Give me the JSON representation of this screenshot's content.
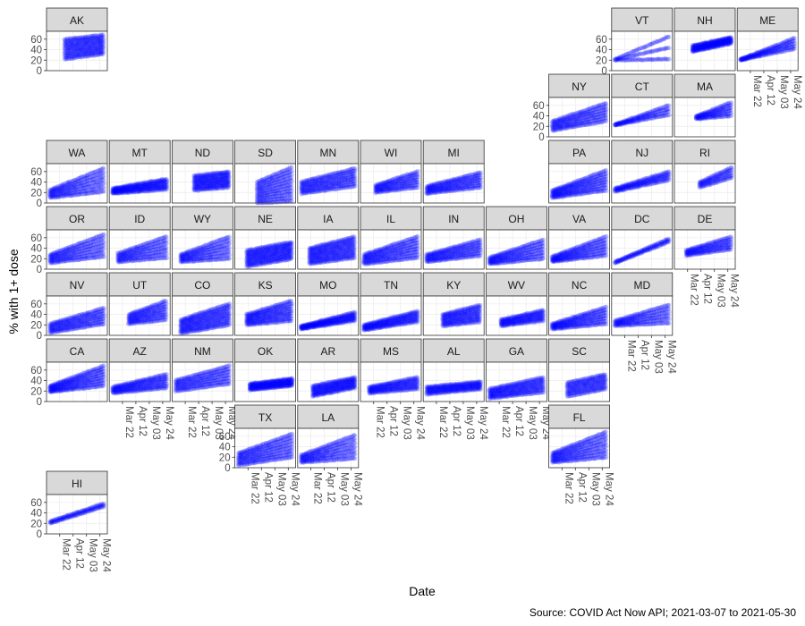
{
  "chart_data": {
    "type": "scatter",
    "layout": "geofacet-us-states",
    "xlabel": "Date",
    "ylabel": "% with 1+ dose",
    "caption": "Source: COVID Act Now API; 2021-03-07  to  2021-05-30",
    "x_range": [
      "2021-03-07",
      "2021-05-30"
    ],
    "x_ticks": [
      "2021-03-22",
      "2021-04-12",
      "2021-05-03",
      "2021-05-24"
    ],
    "x_tick_labels": [
      "Mar 22",
      "Apr 12",
      "May 03",
      "May 24"
    ],
    "ylim": [
      0,
      75
    ],
    "y_ticks": [
      0,
      20,
      40,
      60
    ],
    "grid": true,
    "point_color": "#0000ff",
    "strip_color": "#d9d9d9",
    "panels": [
      {
        "state": "AK",
        "row": 0,
        "col": 0,
        "ylo": [
          22,
          32
        ],
        "yhi": [
          60,
          68
        ],
        "start": "2021-03-30",
        "spread": 1
      },
      {
        "state": "VT",
        "row": 0,
        "col": 9,
        "ylo": [
          20,
          22
        ],
        "yhi": [
          22,
          65
        ],
        "start": "2021-03-07",
        "spread": 0.15
      },
      {
        "state": "NH",
        "row": 0,
        "col": 10,
        "ylo": [
          36,
          52
        ],
        "yhi": [
          48,
          64
        ],
        "start": "2021-03-30",
        "spread": 0.8
      },
      {
        "state": "ME",
        "row": 0,
        "col": 11,
        "ylo": [
          20,
          42
        ],
        "yhi": [
          22,
          62
        ],
        "start": "2021-03-07",
        "spread": 0.35
      },
      {
        "state": "NY",
        "row": 1,
        "col": 8,
        "ylo": [
          12,
          30
        ],
        "yhi": [
          30,
          64
        ],
        "start": "2021-03-07",
        "spread": 0.55
      },
      {
        "state": "CT",
        "row": 1,
        "col": 9,
        "ylo": [
          22,
          42
        ],
        "yhi": [
          24,
          60
        ],
        "start": "2021-03-07",
        "spread": 0.25
      },
      {
        "state": "MA",
        "row": 1,
        "col": 10,
        "ylo": [
          34,
          40
        ],
        "yhi": [
          40,
          66
        ],
        "start": "2021-04-05",
        "spread": 0.45
      },
      {
        "state": "WA",
        "row": 2,
        "col": 0,
        "ylo": [
          10,
          22
        ],
        "yhi": [
          25,
          66
        ],
        "start": "2021-03-07",
        "spread": 0.6
      },
      {
        "state": "MT",
        "row": 2,
        "col": 1,
        "ylo": [
          18,
          26
        ],
        "yhi": [
          28,
          46
        ],
        "start": "2021-03-07",
        "spread": 0.7
      },
      {
        "state": "ND",
        "row": 2,
        "col": 2,
        "ylo": [
          24,
          30
        ],
        "yhi": [
          52,
          60
        ],
        "start": "2021-04-05",
        "spread": 1
      },
      {
        "state": "SD",
        "row": 2,
        "col": 3,
        "ylo": [
          0,
          4
        ],
        "yhi": [
          40,
          68
        ],
        "start": "2021-04-05",
        "spread": 1
      },
      {
        "state": "MN",
        "row": 2,
        "col": 4,
        "ylo": [
          18,
          32
        ],
        "yhi": [
          40,
          66
        ],
        "start": "2021-03-07",
        "spread": 0.65
      },
      {
        "state": "WI",
        "row": 2,
        "col": 5,
        "ylo": [
          20,
          30
        ],
        "yhi": [
          34,
          60
        ],
        "start": "2021-03-25",
        "spread": 0.6
      },
      {
        "state": "MI",
        "row": 2,
        "col": 6,
        "ylo": [
          18,
          30
        ],
        "yhi": [
          32,
          58
        ],
        "start": "2021-03-07",
        "spread": 0.6
      },
      {
        "state": "PA",
        "row": 2,
        "col": 8,
        "ylo": [
          10,
          24
        ],
        "yhi": [
          24,
          62
        ],
        "start": "2021-03-07",
        "spread": 0.65
      },
      {
        "state": "NJ",
        "row": 2,
        "col": 9,
        "ylo": [
          22,
          44
        ],
        "yhi": [
          28,
          60
        ],
        "start": "2021-03-07",
        "spread": 0.35
      },
      {
        "state": "RI",
        "row": 2,
        "col": 10,
        "ylo": [
          30,
          48
        ],
        "yhi": [
          40,
          68
        ],
        "start": "2021-04-10",
        "spread": 0.35
      },
      {
        "state": "OR",
        "row": 3,
        "col": 0,
        "ylo": [
          12,
          24
        ],
        "yhi": [
          28,
          66
        ],
        "start": "2021-03-07",
        "spread": 0.6
      },
      {
        "state": "ID",
        "row": 3,
        "col": 1,
        "ylo": [
          14,
          22
        ],
        "yhi": [
          30,
          62
        ],
        "start": "2021-03-15",
        "spread": 0.55
      },
      {
        "state": "WY",
        "row": 3,
        "col": 2,
        "ylo": [
          14,
          20
        ],
        "yhi": [
          28,
          62
        ],
        "start": "2021-03-15",
        "spread": 0.55
      },
      {
        "state": "NE",
        "row": 3,
        "col": 3,
        "ylo": [
          5,
          20
        ],
        "yhi": [
          36,
          52
        ],
        "start": "2021-03-20",
        "spread": 1
      },
      {
        "state": "IA",
        "row": 3,
        "col": 4,
        "ylo": [
          10,
          22
        ],
        "yhi": [
          40,
          62
        ],
        "start": "2021-03-20",
        "spread": 1
      },
      {
        "state": "IL",
        "row": 3,
        "col": 5,
        "ylo": [
          10,
          22
        ],
        "yhi": [
          28,
          62
        ],
        "start": "2021-03-07",
        "spread": 0.7
      },
      {
        "state": "IN",
        "row": 3,
        "col": 6,
        "ylo": [
          14,
          26
        ],
        "yhi": [
          28,
          56
        ],
        "start": "2021-03-07",
        "spread": 0.6
      },
      {
        "state": "OH",
        "row": 3,
        "col": 7,
        "ylo": [
          10,
          20
        ],
        "yhi": [
          22,
          56
        ],
        "start": "2021-03-07",
        "spread": 0.6
      },
      {
        "state": "VA",
        "row": 3,
        "col": 8,
        "ylo": [
          14,
          26
        ],
        "yhi": [
          24,
          62
        ],
        "start": "2021-03-07",
        "spread": 0.6
      },
      {
        "state": "DC",
        "row": 3,
        "col": 9,
        "ylo": [
          12,
          52
        ],
        "yhi": [
          14,
          58
        ],
        "start": "2021-03-07",
        "spread": 0.1
      },
      {
        "state": "DE",
        "row": 3,
        "col": 10,
        "ylo": [
          26,
          38
        ],
        "yhi": [
          36,
          62
        ],
        "start": "2021-03-20",
        "spread": 0.4
      },
      {
        "state": "NV",
        "row": 4,
        "col": 0,
        "ylo": [
          5,
          22
        ],
        "yhi": [
          22,
          52
        ],
        "start": "2021-03-07",
        "spread": 0.55
      },
      {
        "state": "UT",
        "row": 4,
        "col": 1,
        "ylo": [
          22,
          30
        ],
        "yhi": [
          40,
          66
        ],
        "start": "2021-04-01",
        "spread": 0.7
      },
      {
        "state": "CO",
        "row": 4,
        "col": 2,
        "ylo": [
          4,
          20
        ],
        "yhi": [
          30,
          60
        ],
        "start": "2021-03-15",
        "spread": 0.9
      },
      {
        "state": "KS",
        "row": 4,
        "col": 3,
        "ylo": [
          20,
          28
        ],
        "yhi": [
          40,
          66
        ],
        "start": "2021-03-20",
        "spread": 0.8
      },
      {
        "state": "MO",
        "row": 4,
        "col": 4,
        "ylo": [
          12,
          28
        ],
        "yhi": [
          18,
          44
        ],
        "start": "2021-03-07",
        "spread": 0.6
      },
      {
        "state": "TN",
        "row": 4,
        "col": 5,
        "ylo": [
          10,
          26
        ],
        "yhi": [
          20,
          46
        ],
        "start": "2021-03-07",
        "spread": 0.6
      },
      {
        "state": "KY",
        "row": 4,
        "col": 6,
        "ylo": [
          18,
          26
        ],
        "yhi": [
          40,
          58
        ],
        "start": "2021-04-01",
        "spread": 0.8
      },
      {
        "state": "WV",
        "row": 4,
        "col": 7,
        "ylo": [
          18,
          28
        ],
        "yhi": [
          30,
          48
        ],
        "start": "2021-03-25",
        "spread": 0.6
      },
      {
        "state": "NC",
        "row": 4,
        "col": 8,
        "ylo": [
          12,
          22
        ],
        "yhi": [
          22,
          54
        ],
        "start": "2021-03-07",
        "spread": 0.6
      },
      {
        "state": "MD",
        "row": 4,
        "col": 9,
        "ylo": [
          18,
          24
        ],
        "yhi": [
          28,
          58
        ],
        "start": "2021-03-07",
        "spread": 0.45
      },
      {
        "state": "CA",
        "row": 5,
        "col": 0,
        "ylo": [
          18,
          30
        ],
        "yhi": [
          30,
          68
        ],
        "start": "2021-03-07",
        "spread": 0.65
      },
      {
        "state": "AZ",
        "row": 5,
        "col": 1,
        "ylo": [
          16,
          26
        ],
        "yhi": [
          28,
          52
        ],
        "start": "2021-03-07",
        "spread": 0.6
      },
      {
        "state": "NM",
        "row": 5,
        "col": 2,
        "ylo": [
          20,
          34
        ],
        "yhi": [
          40,
          68
        ],
        "start": "2021-03-07",
        "spread": 0.55
      },
      {
        "state": "OK",
        "row": 5,
        "col": 3,
        "ylo": [
          22,
          30
        ],
        "yhi": [
          34,
          44
        ],
        "start": "2021-03-25",
        "spread": 0.8
      },
      {
        "state": "AR",
        "row": 5,
        "col": 4,
        "ylo": [
          10,
          26
        ],
        "yhi": [
          30,
          46
        ],
        "start": "2021-03-25",
        "spread": 0.75
      },
      {
        "state": "MS",
        "row": 5,
        "col": 5,
        "ylo": [
          16,
          24
        ],
        "yhi": [
          28,
          46
        ],
        "start": "2021-03-15",
        "spread": 0.6
      },
      {
        "state": "AL",
        "row": 5,
        "col": 6,
        "ylo": [
          14,
          24
        ],
        "yhi": [
          28,
          38
        ],
        "start": "2021-03-07",
        "spread": 0.6
      },
      {
        "state": "GA",
        "row": 5,
        "col": 7,
        "ylo": [
          6,
          18
        ],
        "yhi": [
          24,
          46
        ],
        "start": "2021-03-07",
        "spread": 0.65
      },
      {
        "state": "SC",
        "row": 5,
        "col": 8,
        "ylo": [
          10,
          24
        ],
        "yhi": [
          36,
          52
        ],
        "start": "2021-03-30",
        "spread": 0.7
      },
      {
        "state": "TX",
        "row": 6,
        "col": 3,
        "ylo": [
          5,
          20
        ],
        "yhi": [
          28,
          64
        ],
        "start": "2021-03-07",
        "spread": 0.7
      },
      {
        "state": "LA",
        "row": 6,
        "col": 4,
        "ylo": [
          10,
          18
        ],
        "yhi": [
          24,
          62
        ],
        "start": "2021-03-07",
        "spread": 0.6
      },
      {
        "state": "FL",
        "row": 6,
        "col": 8,
        "ylo": [
          10,
          20
        ],
        "yhi": [
          28,
          68
        ],
        "start": "2021-03-07",
        "spread": 0.7
      },
      {
        "state": "HI",
        "row": 7,
        "col": 0,
        "ylo": [
          20,
          52
        ],
        "yhi": [
          24,
          58
        ],
        "start": "2021-03-07",
        "spread": 0.1
      }
    ],
    "x_axis_under": [
      "ME",
      "DE",
      "MD",
      "AZ",
      "NM",
      "MS",
      "AL",
      "GA",
      "TX",
      "LA",
      "FL",
      "HI"
    ],
    "y_axis_left": [
      "AK",
      "VT",
      "NY",
      "WA",
      "OR",
      "NV",
      "CA",
      "TX",
      "HI"
    ]
  }
}
